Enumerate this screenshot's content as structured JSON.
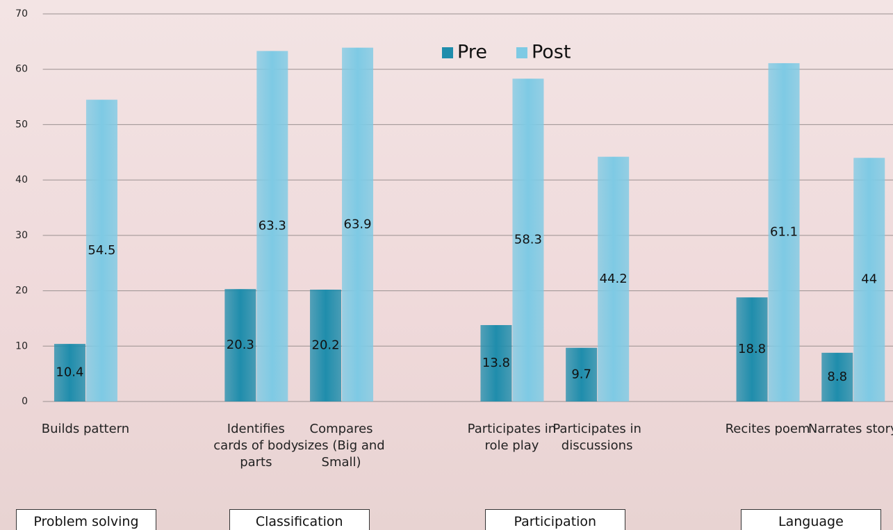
{
  "chart_data": {
    "type": "bar",
    "groups": [
      {
        "label": "Problem solving",
        "categories": [
          "Builds pattern"
        ]
      },
      {
        "label": "Classification",
        "categories": [
          "Identifies cards of body parts",
          "Compares sizes (Big and Small)"
        ]
      },
      {
        "label": "Participation",
        "categories": [
          "Participates in role play",
          "Participates in discussions"
        ]
      },
      {
        "label": "Language",
        "categories": [
          "Recites poem",
          "Narrates story"
        ]
      }
    ],
    "series": [
      {
        "name": "Pre",
        "color": "#1f8dac",
        "values": [
          10.4,
          20.3,
          20.2,
          13.8,
          9.7,
          18.8,
          8.8
        ]
      },
      {
        "name": "Post",
        "color": "#7ecae4",
        "values": [
          54.5,
          63.3,
          63.9,
          58.3,
          44.2,
          61.1,
          44
        ]
      }
    ],
    "ylim": [
      0,
      70
    ],
    "yticks": [
      0,
      10,
      20,
      30,
      40,
      50,
      60,
      70
    ],
    "grid": true,
    "legend": "top"
  }
}
